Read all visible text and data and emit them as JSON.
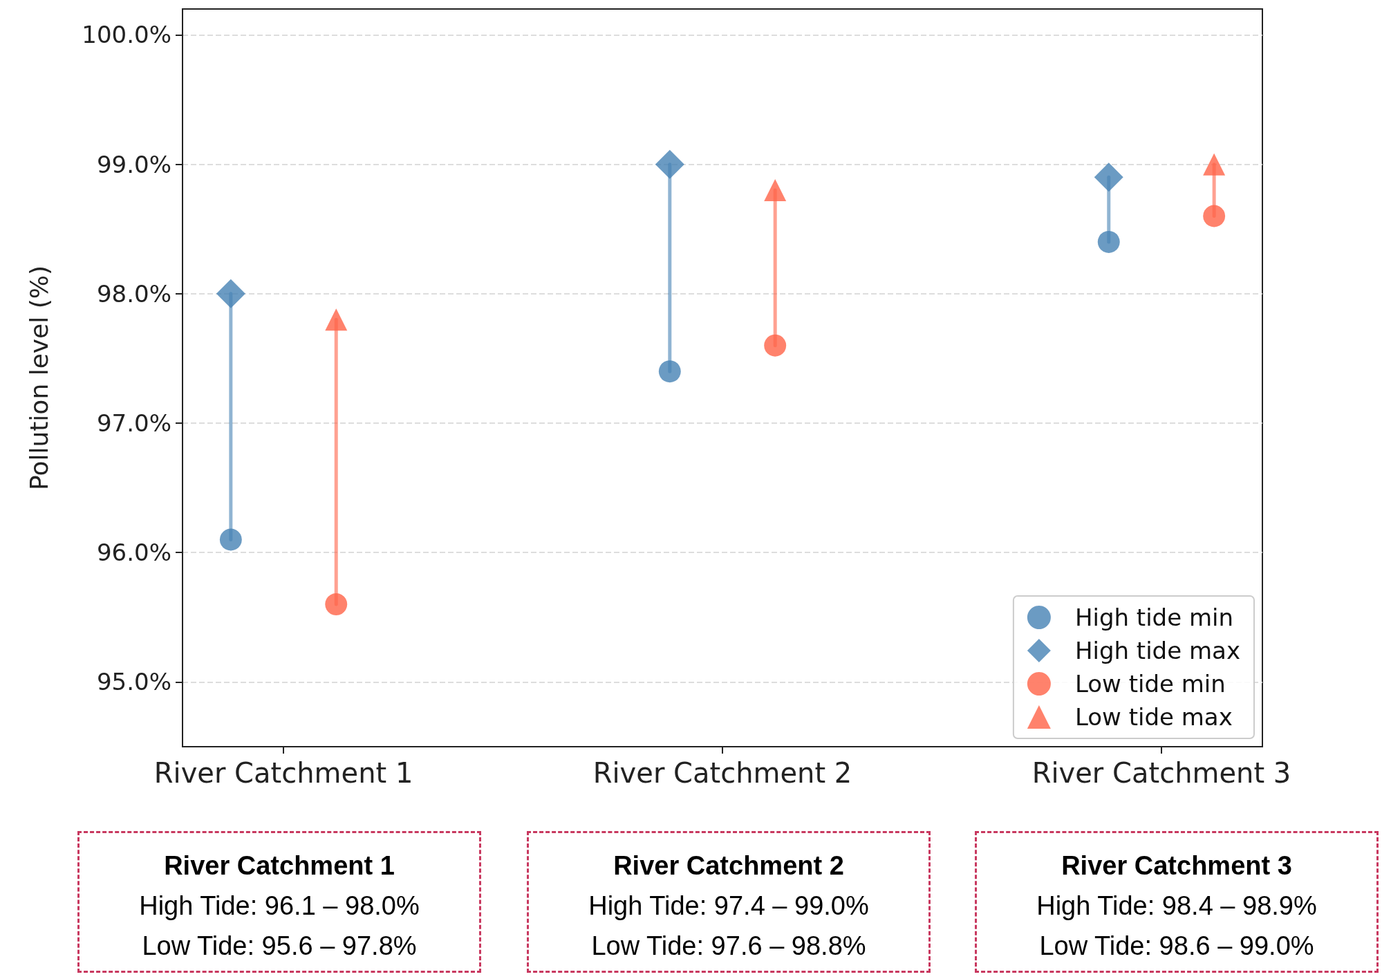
{
  "chart_data": {
    "type": "scatter",
    "ylabel": "Pollution level (%)",
    "categories": [
      "River Catchment 1",
      "River Catchment 2",
      "River Catchment 3"
    ],
    "series": [
      {
        "name": "High tide min",
        "color": "#4682b4",
        "marker": "circle",
        "values": [
          96.1,
          97.4,
          98.4
        ]
      },
      {
        "name": "High tide max",
        "color": "#4682b4",
        "marker": "diamond",
        "values": [
          98.0,
          99.0,
          98.9
        ]
      },
      {
        "name": "Low tide min",
        "color": "#ff6347",
        "marker": "circle",
        "values": [
          95.6,
          97.6,
          98.6
        ]
      },
      {
        "name": "Low tide max",
        "color": "#ff6347",
        "marker": "triangle",
        "values": [
          97.8,
          98.8,
          99.0
        ]
      }
    ],
    "ylim": [
      94.5,
      100.2
    ],
    "yticks": [
      {
        "value": 95,
        "label": "95.0%"
      },
      {
        "value": 96,
        "label": "96.0%"
      },
      {
        "value": 97,
        "label": "97.0%"
      },
      {
        "value": 98,
        "label": "98.0%"
      },
      {
        "value": 99,
        "label": "99.0%"
      },
      {
        "value": 100,
        "label": "100.0%"
      }
    ],
    "grid": "y",
    "legend": "bottom right",
    "annotations": [
      "River Catchment 1\nHigh Tide: 96.1 – 98.0%\nLow Tide: 95.6 – 97.8%",
      "River Catchment 2\nHigh Tide: 97.4 – 99.0%\nLow Tide: 97.6 – 98.8%",
      "River Catchment 3\nHigh Tide: 98.4 – 98.9%\nLow Tide: 98.6 – 99.0%"
    ]
  }
}
